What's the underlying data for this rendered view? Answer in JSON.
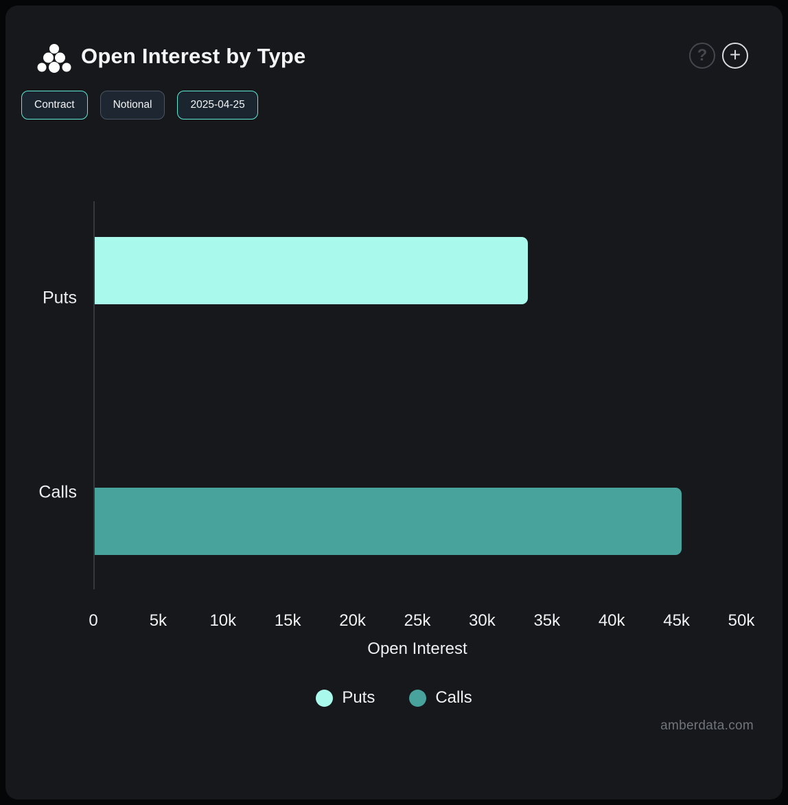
{
  "app": {
    "background": "#050608",
    "panel_background": "#16181b"
  },
  "header": {
    "title": "Open Interest by Type",
    "help_glyph": "?",
    "add_glyph": "+"
  },
  "toolbar": {
    "accent_color": "#5eead4",
    "buttons": [
      {
        "label": "Contract",
        "active": true
      },
      {
        "label": "Notional",
        "active": false
      },
      {
        "label": "2025-04-25",
        "active": true
      }
    ]
  },
  "chart_data": {
    "type": "bar",
    "orientation": "horizontal",
    "title": "Open Interest by Type",
    "categories": [
      "Puts",
      "Calls"
    ],
    "values": [
      33400,
      45300
    ],
    "series_colors": [
      "#a9faec",
      "#47a39b"
    ],
    "xlabel": "Open Interest",
    "ylabel": "",
    "xlim": [
      0,
      50000
    ],
    "xticks": [
      "0",
      "5k",
      "10k",
      "15k",
      "20k",
      "25k",
      "30k",
      "35k",
      "40k",
      "45k",
      "50k"
    ],
    "xtick_values": [
      0,
      5000,
      10000,
      15000,
      20000,
      25000,
      30000,
      35000,
      40000,
      45000,
      50000
    ],
    "grid": false,
    "legend_position": "bottom",
    "legend": [
      {
        "label": "Puts",
        "color": "#a9faec"
      },
      {
        "label": "Calls",
        "color": "#47a39b"
      }
    ]
  },
  "footer": {
    "watermark": "amberdata.com"
  }
}
